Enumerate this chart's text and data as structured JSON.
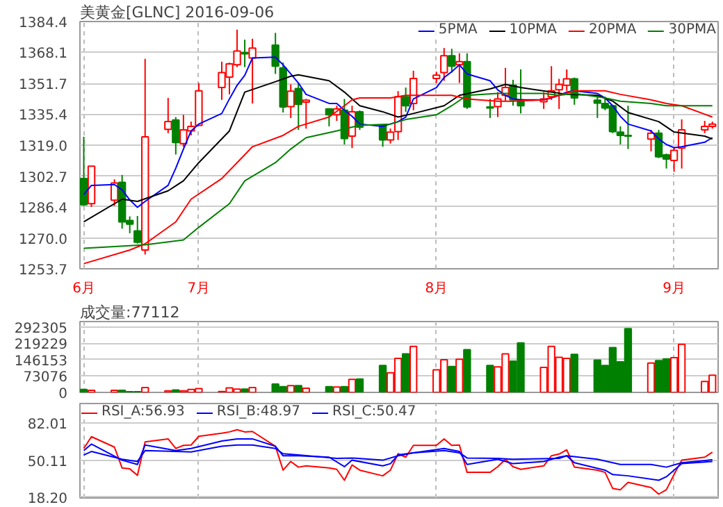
{
  "chart_data": [
    {
      "type": "candlestick",
      "title": "美黄金[GLNC] 2016-09-06",
      "x": [
        "2016-06-16",
        "2016-06-17",
        "2016-06-20",
        "2016-06-21",
        "2016-06-22",
        "2016-06-23",
        "2016-06-24",
        "2016-06-27",
        "2016-06-28",
        "2016-06-29",
        "2016-06-30",
        "2016-07-01",
        "2016-07-04",
        "2016-07-05",
        "2016-07-06",
        "2016-07-07",
        "2016-07-08",
        "2016-07-11",
        "2016-07-12",
        "2016-07-13",
        "2016-07-14",
        "2016-07-15",
        "2016-07-18",
        "2016-07-19",
        "2016-07-20",
        "2016-07-21",
        "2016-07-22",
        "2016-07-25",
        "2016-07-26",
        "2016-07-27",
        "2016-07-28",
        "2016-07-29",
        "2016-08-01",
        "2016-08-02",
        "2016-08-03",
        "2016-08-04",
        "2016-08-05",
        "2016-08-08",
        "2016-08-09",
        "2016-08-10",
        "2016-08-11",
        "2016-08-12",
        "2016-08-15",
        "2016-08-16",
        "2016-08-17",
        "2016-08-18",
        "2016-08-19",
        "2016-08-22",
        "2016-08-23",
        "2016-08-24",
        "2016-08-25",
        "2016-08-26",
        "2016-08-29",
        "2016-08-30",
        "2016-08-31",
        "2016-09-01",
        "2016-09-02",
        "2016-09-05",
        "2016-09-06"
      ],
      "ohlc": [
        [
          1301.4,
          1323.5,
          1286.9,
          1287.6
        ],
        [
          1288.1,
          1307.9,
          1286.4,
          1307.9
        ],
        [
          1290.0,
          1301.0,
          1287.0,
          1299.0
        ],
        [
          1299.4,
          1303.3,
          1274.9,
          1278.5
        ],
        [
          1279.2,
          1281.4,
          1272.5,
          1277.3
        ],
        [
          1273.7,
          1281.6,
          1267.0,
          1267.7
        ],
        [
          1263.6,
          1364.7,
          1261.2,
          1323.5
        ],
        [
          1327.4,
          1344.0,
          1325.4,
          1331.5
        ],
        [
          1332.4,
          1333.9,
          1314.1,
          1320.4
        ],
        [
          1319.9,
          1335.1,
          1318.2,
          1327.1
        ],
        [
          1326.6,
          1331.5,
          1324.2,
          1329.0
        ],
        [
          1329.5,
          1351.9,
          1329.5,
          1347.8
        ],
        [
          1349.5,
          1363.2,
          1343.0,
          1357.4
        ],
        [
          1355.0,
          1362.7,
          1345.9,
          1362.0
        ],
        [
          1361.5,
          1380.1,
          1360.3,
          1368.8
        ],
        [
          1368.0,
          1374.8,
          1360.3,
          1367.3
        ],
        [
          1365.1,
          1375.3,
          1341.1,
          1370.4
        ],
        [
          1371.9,
          1378.4,
          1356.7,
          1360.8
        ],
        [
          1359.9,
          1362.7,
          1336.3,
          1339.2
        ],
        [
          1339.4,
          1351.2,
          1333.4,
          1347.6
        ],
        [
          1349.0,
          1351.9,
          1327.1,
          1340.6
        ],
        [
          1341.8,
          1343.5,
          1327.8,
          1342.8
        ],
        [
          1338.2,
          1338.2,
          1329.0,
          1335.1
        ],
        [
          1335.1,
          1339.9,
          1331.9,
          1338.2
        ],
        [
          1337.5,
          1343.5,
          1319.4,
          1322.5
        ],
        [
          1323.8,
          1339.9,
          1317.5,
          1336.7
        ],
        [
          1336.7,
          1337.4,
          1327.1,
          1328.6
        ],
        [
          1329.5,
          1330.2,
          1318.2,
          1321.8
        ],
        [
          1321.8,
          1327.8,
          1319.9,
          1325.9
        ],
        [
          1326.2,
          1347.6,
          1321.8,
          1344.7
        ],
        [
          1344.7,
          1349.5,
          1336.7,
          1339.9
        ],
        [
          1341.1,
          1358.4,
          1337.5,
          1354.3
        ],
        [
          1354.3,
          1357.9,
          1351.9,
          1356.0
        ],
        [
          1357.4,
          1370.4,
          1353.1,
          1366.3
        ],
        [
          1366.3,
          1370.0,
          1357.4,
          1360.8
        ],
        [
          1361.5,
          1367.6,
          1351.9,
          1363.2
        ],
        [
          1363.2,
          1367.6,
          1338.2,
          1339.2
        ],
        [
          1339.2,
          1343.5,
          1333.4,
          1338.7
        ],
        [
          1339.4,
          1347.1,
          1333.9,
          1343.5
        ],
        [
          1345.4,
          1359.9,
          1342.3,
          1349.5
        ],
        [
          1350.7,
          1353.6,
          1339.9,
          1343.0
        ],
        [
          1343.0,
          1359.1,
          1335.8,
          1339.9
        ],
        [
          1342.0,
          1347.1,
          1338.2,
          1343.5
        ],
        [
          1344.7,
          1360.8,
          1343.0,
          1347.8
        ],
        [
          1348.3,
          1354.1,
          1338.2,
          1351.2
        ],
        [
          1350.7,
          1359.1,
          1347.8,
          1354.1
        ],
        [
          1354.1,
          1354.8,
          1340.4,
          1344.0
        ],
        [
          1342.8,
          1345.2,
          1333.4,
          1341.3
        ],
        [
          1341.1,
          1344.7,
          1337.5,
          1338.7
        ],
        [
          1339.9,
          1339.9,
          1325.4,
          1326.2
        ],
        [
          1325.9,
          1329.0,
          1319.4,
          1324.2
        ],
        [
          1324.2,
          1339.9,
          1317.0,
          1323.8
        ],
        [
          1322.3,
          1327.1,
          1315.8,
          1325.4
        ],
        [
          1325.4,
          1327.1,
          1312.2,
          1312.9
        ],
        [
          1313.9,
          1314.6,
          1306.7,
          1311.7
        ],
        [
          1311.0,
          1318.2,
          1305.0,
          1316.3
        ],
        [
          1317.5,
          1332.7,
          1306.7,
          1327.1
        ],
        [
          1327.1,
          1331.9,
          1325.4,
          1329.0
        ],
        [
          1329.0,
          1331.5,
          1327.8,
          1330.2
        ]
      ],
      "series": [
        {
          "name": "5PMA",
          "type": "line",
          "color": "#0000ff",
          "x": [
            "2016-06-16",
            "2016-06-17",
            "2016-06-20",
            "2016-06-21",
            "2016-06-22",
            "2016-06-23",
            "2016-06-24",
            "2016-06-27",
            "2016-06-28",
            "2016-06-29",
            "2016-06-30",
            "2016-07-01",
            "2016-07-04",
            "2016-07-05",
            "2016-07-06",
            "2016-07-07",
            "2016-07-08",
            "2016-07-11",
            "2016-07-12",
            "2016-07-13",
            "2016-07-14",
            "2016-07-15",
            "2016-07-18",
            "2016-07-19",
            "2016-07-20",
            "2016-07-21",
            "2016-07-22",
            "2016-07-25",
            "2016-07-27",
            "2016-07-28",
            "2016-07-29",
            "2016-08-01",
            "2016-08-02",
            "2016-08-03",
            "2016-08-04",
            "2016-08-05",
            "2016-08-08",
            "2016-08-09",
            "2016-08-10",
            "2016-08-11",
            "2016-08-12",
            "2016-08-15",
            "2016-08-16",
            "2016-08-17",
            "2016-08-18",
            "2016-08-19",
            "2016-08-22",
            "2016-08-23",
            "2016-08-24",
            "2016-08-25",
            "2016-08-26",
            "2016-08-29",
            "2016-08-30",
            "2016-08-31",
            "2016-09-01",
            "2016-09-02",
            "2016-09-05",
            "2016-09-06"
          ],
          "values": [
            1292.9,
            1297.8,
            1298.2,
            1295.4,
            1290.1,
            1286.2,
            1289.3,
            1297.8,
            1306.9,
            1317.0,
            1326.6,
            1330.2,
            1335.8,
            1343.5,
            1350.7,
            1356.0,
            1365.1,
            1365.6,
            1361.5,
            1356.7,
            1351.9,
            1345.9,
            1341.1,
            1341.1,
            1337.5,
            1334.3,
            1330.2,
            1329.0,
            1331.5,
            1333.9,
            1343.5,
            1349.5,
            1354.8,
            1357.9,
            1361.5,
            1356.7,
            1353.1,
            1348.3,
            1345.4,
            1343.5,
            1343.0,
            1343.0,
            1344.0,
            1345.4,
            1347.1,
            1347.8,
            1346.4,
            1344.0,
            1339.9,
            1334.3,
            1330.2,
            1326.6,
            1322.3,
            1319.4,
            1317.7,
            1318.2,
            1320.6,
            1323.0
          ]
        },
        {
          "name": "10PMA",
          "type": "line",
          "color": "#000000",
          "x": [
            "2016-06-16",
            "2016-06-21",
            "2016-06-23",
            "2016-06-27",
            "2016-06-29",
            "2016-07-01",
            "2016-07-05",
            "2016-07-07",
            "2016-07-11",
            "2016-07-13",
            "2016-07-14",
            "2016-07-18",
            "2016-07-20",
            "2016-07-22",
            "2016-07-25",
            "2016-07-27",
            "2016-07-29",
            "2016-08-02",
            "2016-08-04",
            "2016-08-08",
            "2016-08-10",
            "2016-08-12",
            "2016-08-16",
            "2016-08-18",
            "2016-08-22",
            "2016-08-24",
            "2016-08-26",
            "2016-08-30",
            "2016-09-01",
            "2016-09-05",
            "2016-09-06"
          ],
          "values": [
            1278.5,
            1290.5,
            1289.3,
            1294.9,
            1300.2,
            1309.8,
            1326.6,
            1347.1,
            1352.6,
            1355.5,
            1356.2,
            1353.1,
            1347.1,
            1339.9,
            1336.7,
            1333.9,
            1335.8,
            1339.9,
            1345.4,
            1348.8,
            1351.2,
            1349.5,
            1347.1,
            1345.9,
            1345.4,
            1342.3,
            1336.3,
            1331.5,
            1326.0,
            1323.8,
            1322.3
          ]
        },
        {
          "name": "20PMA",
          "type": "line",
          "color": "#ff0000",
          "x": [
            "2016-06-16",
            "2016-06-22",
            "2016-06-24",
            "2016-06-28",
            "2016-06-30",
            "2016-07-04",
            "2016-07-06",
            "2016-07-08",
            "2016-07-12",
            "2016-07-14",
            "2016-07-18",
            "2016-07-20",
            "2016-07-21",
            "2016-07-22",
            "2016-07-26",
            "2016-07-28",
            "2016-08-01",
            "2016-08-03",
            "2016-08-05",
            "2016-08-09",
            "2016-08-11",
            "2016-08-15",
            "2016-08-17",
            "2016-08-19",
            "2016-08-23",
            "2016-08-25",
            "2016-08-29",
            "2016-08-31",
            "2016-09-02",
            "2016-09-06"
          ],
          "values": [
            1256.4,
            1263.6,
            1266.9,
            1278.5,
            1290.5,
            1301.4,
            1309.8,
            1318.2,
            1324.2,
            1329.0,
            1333.9,
            1339.9,
            1343.0,
            1344.0,
            1344.0,
            1345.4,
            1345.4,
            1345.4,
            1343.5,
            1342.3,
            1342.3,
            1343.0,
            1345.4,
            1347.8,
            1347.8,
            1345.9,
            1343.0,
            1341.1,
            1339.9,
            1333.9
          ]
        },
        {
          "name": "30PMA",
          "type": "line",
          "color": "#008000",
          "x": [
            "2016-06-16",
            "2016-06-24",
            "2016-06-29",
            "2016-07-01",
            "2016-07-05",
            "2016-07-07",
            "2016-07-11",
            "2016-07-13",
            "2016-07-15",
            "2016-07-19",
            "2016-07-21",
            "2016-07-22",
            "2016-07-26",
            "2016-07-28",
            "2016-08-01",
            "2016-08-03",
            "2016-08-05",
            "2016-08-09",
            "2016-08-11",
            "2016-08-15",
            "2016-08-17",
            "2016-08-19",
            "2016-08-23",
            "2016-08-25",
            "2016-08-29",
            "2016-08-31",
            "2016-09-02",
            "2016-09-06"
          ],
          "values": [
            1264.5,
            1266.4,
            1268.9,
            1275.6,
            1288.1,
            1300.2,
            1309.8,
            1317.0,
            1323.0,
            1326.6,
            1328.6,
            1329.5,
            1330.2,
            1332.6,
            1335.1,
            1339.9,
            1345.4,
            1346.4,
            1346.4,
            1346.4,
            1345.4,
            1346.4,
            1344.0,
            1342.3,
            1341.1,
            1339.9,
            1339.9,
            1339.9
          ]
        }
      ],
      "xlim": [
        "2016-06-15T12:00",
        "2016-09-06T18:00"
      ],
      "xticks": [
        {
          "value": "2016-06-16",
          "label": "6月"
        },
        {
          "value": "2016-07-01",
          "label": "7月"
        },
        {
          "value": "2016-08-01",
          "label": "8月"
        },
        {
          "value": "2016-09-01",
          "label": "9月"
        }
      ],
      "ylim": [
        1253.7,
        1384.4
      ],
      "yticks": [
        1253.7,
        {
          "value": 1270,
          "label": "1270.0"
        },
        1286.4,
        1302.7,
        {
          "value": 1319,
          "label": "1319.0"
        },
        1335.4,
        1351.7,
        1368.1,
        1384.4
      ],
      "grid": true,
      "legend": "top right"
    },
    {
      "type": "bar",
      "title": "成交量:77112",
      "x": [
        "2016-06-16",
        "2016-06-17",
        "2016-06-20",
        "2016-06-21",
        "2016-06-22",
        "2016-06-23",
        "2016-06-24",
        "2016-06-27",
        "2016-06-28",
        "2016-06-29",
        "2016-06-30",
        "2016-07-01",
        "2016-07-04",
        "2016-07-05",
        "2016-07-06",
        "2016-07-07",
        "2016-07-08",
        "2016-07-11",
        "2016-07-12",
        "2016-07-13",
        "2016-07-14",
        "2016-07-15",
        "2016-07-18",
        "2016-07-19",
        "2016-07-20",
        "2016-07-21",
        "2016-07-22",
        "2016-07-25",
        "2016-07-26",
        "2016-07-27",
        "2016-07-28",
        "2016-07-29",
        "2016-08-01",
        "2016-08-02",
        "2016-08-03",
        "2016-08-04",
        "2016-08-05",
        "2016-08-08",
        "2016-08-09",
        "2016-08-10",
        "2016-08-11",
        "2016-08-12",
        "2016-08-15",
        "2016-08-16",
        "2016-08-17",
        "2016-08-18",
        "2016-08-19",
        "2016-08-22",
        "2016-08-23",
        "2016-08-24",
        "2016-08-25",
        "2016-08-26",
        "2016-08-29",
        "2016-08-30",
        "2016-08-31",
        "2016-09-01",
        "2016-09-02",
        "2016-09-05",
        "2016-09-06"
      ],
      "values": [
        13000,
        9000,
        9000,
        9000,
        3000,
        3000,
        22000,
        7000,
        11000,
        7000,
        13000,
        17000,
        4000,
        20000,
        15000,
        15000,
        22000,
        37000,
        26000,
        30000,
        30000,
        19000,
        26000,
        24000,
        26000,
        58000,
        60000,
        120000,
        88000,
        152000,
        172000,
        206000,
        101000,
        146000,
        116000,
        148000,
        191000,
        120000,
        114000,
        172000,
        140000,
        221000,
        112000,
        206000,
        157000,
        152000,
        170000,
        144000,
        120000,
        200000,
        137000,
        285000,
        131000,
        142000,
        150000,
        155000,
        215000,
        49000,
        77112
      ],
      "colors": [
        "#008000",
        "#ff0000",
        "#ff0000",
        "#008000",
        "#008000",
        "#008000",
        "#ff0000",
        "#ff0000",
        "#008000",
        "#ff0000",
        "#ff0000",
        "#ff0000",
        "#ff0000",
        "#ff0000",
        "#ff0000",
        "#008000",
        "#ff0000",
        "#008000",
        "#008000",
        "#ff0000",
        "#008000",
        "#ff0000",
        "#008000",
        "#ff0000",
        "#008000",
        "#ff0000",
        "#008000",
        "#008000",
        "#ff0000",
        "#ff0000",
        "#008000",
        "#ff0000",
        "#ff0000",
        "#ff0000",
        "#008000",
        "#ff0000",
        "#008000",
        "#008000",
        "#ff0000",
        "#ff0000",
        "#008000",
        "#008000",
        "#ff0000",
        "#ff0000",
        "#ff0000",
        "#ff0000",
        "#008000",
        "#008000",
        "#008000",
        "#008000",
        "#008000",
        "#008000",
        "#ff0000",
        "#008000",
        "#008000",
        "#ff0000",
        "#ff0000",
        "#ff0000",
        "#ff0000"
      ],
      "xlim": [
        "2016-06-15T12:00",
        "2016-09-06T18:00"
      ],
      "xticks": [
        {
          "value": "2016-06-16",
          "label": null
        },
        {
          "value": "2016-07-01",
          "label": null
        },
        {
          "value": "2016-08-01",
          "label": null
        },
        {
          "value": "2016-09-01",
          "label": null
        }
      ],
      "ylim": [
        0,
        316700
      ],
      "yticks": [
        0,
        73076,
        146153,
        219229,
        292305
      ],
      "grid": true,
      "tick_labels": "y"
    },
    {
      "type": "line",
      "series": [
        {
          "name": "RSI_A:56.93",
          "color": "#ff0000",
          "x": [
            "2016-06-16",
            "2016-06-17",
            "2016-06-20",
            "2016-06-21",
            "2016-06-22",
            "2016-06-23",
            "2016-06-24",
            "2016-06-27",
            "2016-06-28",
            "2016-06-29",
            "2016-06-30",
            "2016-07-01",
            "2016-07-04",
            "2016-07-05",
            "2016-07-06",
            "2016-07-07",
            "2016-07-08",
            "2016-07-11",
            "2016-07-12",
            "2016-07-13",
            "2016-07-14",
            "2016-07-15",
            "2016-07-18",
            "2016-07-19",
            "2016-07-20",
            "2016-07-21",
            "2016-07-22",
            "2016-07-25",
            "2016-07-26",
            "2016-07-27",
            "2016-07-28",
            "2016-07-29",
            "2016-08-01",
            "2016-08-02",
            "2016-08-03",
            "2016-08-04",
            "2016-08-05",
            "2016-08-08",
            "2016-08-09",
            "2016-08-10",
            "2016-08-11",
            "2016-08-12",
            "2016-08-15",
            "2016-08-16",
            "2016-08-17",
            "2016-08-18",
            "2016-08-19",
            "2016-08-22",
            "2016-08-23",
            "2016-08-24",
            "2016-08-25",
            "2016-08-26",
            "2016-08-29",
            "2016-08-30",
            "2016-08-31",
            "2016-09-01",
            "2016-09-02",
            "2016-09-05",
            "2016-09-06"
          ],
          "values": [
            60.2,
            70.4,
            61.4,
            43.4,
            42.6,
            37.0,
            65.9,
            68.5,
            60.2,
            62.9,
            63.2,
            70.7,
            73.4,
            74.5,
            76.4,
            74.5,
            74.9,
            62.1,
            41.5,
            49.0,
            44.1,
            45.2,
            43.4,
            42.2,
            32.8,
            46.0,
            41.5,
            36.6,
            41.5,
            55.7,
            52.7,
            62.9,
            62.9,
            68.5,
            62.9,
            63.2,
            39.6,
            39.6,
            44.5,
            50.9,
            44.5,
            42.2,
            45.2,
            53.9,
            55.4,
            59.1,
            44.1,
            41.5,
            39.6,
            25.7,
            24.6,
            31.0,
            26.5,
            20.8,
            24.6,
            37.7,
            50.1,
            52.7,
            56.93
          ]
        },
        {
          "name": "RSI_B:48.97",
          "color": "#0000ff",
          "x": [
            "2016-06-16",
            "2016-06-17",
            "2016-06-21",
            "2016-06-23",
            "2016-06-24",
            "2016-06-28",
            "2016-06-30",
            "2016-07-04",
            "2016-07-06",
            "2016-07-08",
            "2016-07-11",
            "2016-07-12",
            "2016-07-14",
            "2016-07-18",
            "2016-07-20",
            "2016-07-21",
            "2016-07-25",
            "2016-07-26",
            "2016-07-27",
            "2016-07-29",
            "2016-08-02",
            "2016-08-04",
            "2016-08-05",
            "2016-08-09",
            "2016-08-11",
            "2016-08-15",
            "2016-08-17",
            "2016-08-18",
            "2016-08-19",
            "2016-08-23",
            "2016-08-24",
            "2016-08-26",
            "2016-08-30",
            "2016-08-31",
            "2016-09-02",
            "2016-09-06"
          ],
          "values": [
            58.4,
            64.0,
            50.1,
            46.4,
            63.2,
            58.4,
            60.2,
            66.6,
            68.5,
            68.5,
            62.1,
            53.9,
            53.9,
            52.7,
            44.5,
            50.1,
            45.2,
            47.1,
            54.6,
            56.5,
            60.2,
            57.6,
            46.4,
            50.9,
            47.1,
            49.0,
            52.7,
            53.9,
            47.9,
            41.5,
            37.7,
            36.6,
            32.8,
            35.8,
            47.1,
            48.97
          ]
        },
        {
          "name": "RSI_C:50.47",
          "color": "#0000ff",
          "x": [
            "2016-06-16",
            "2016-06-17",
            "2016-06-21",
            "2016-06-23",
            "2016-06-24",
            "2016-06-28",
            "2016-06-30",
            "2016-07-04",
            "2016-07-06",
            "2016-07-08",
            "2016-07-11",
            "2016-07-12",
            "2016-07-14",
            "2016-07-19",
            "2016-07-21",
            "2016-07-25",
            "2016-07-27",
            "2016-07-29",
            "2016-08-02",
            "2016-08-04",
            "2016-08-05",
            "2016-08-09",
            "2016-08-11",
            "2016-08-17",
            "2016-08-18",
            "2016-08-22",
            "2016-08-25",
            "2016-08-29",
            "2016-08-31",
            "2016-09-02",
            "2016-09-06"
          ],
          "values": [
            54.6,
            57.6,
            50.9,
            49.0,
            58.4,
            57.6,
            57.2,
            62.1,
            63.2,
            63.2,
            60.2,
            55.7,
            54.6,
            51.6,
            52.0,
            50.1,
            53.9,
            56.5,
            58.4,
            56.5,
            52.0,
            51.6,
            50.9,
            51.6,
            53.9,
            50.9,
            46.4,
            46.4,
            44.1,
            47.9,
            50.47
          ]
        }
      ],
      "xlim": [
        "2016-06-15T12:00",
        "2016-09-06T18:00"
      ],
      "xticks": [
        {
          "value": "2016-06-16",
          "label": null
        },
        {
          "value": "2016-07-01",
          "label": null
        },
        {
          "value": "2016-08-01",
          "label": null
        },
        {
          "value": "2016-09-01",
          "label": null
        }
      ],
      "ylim": [
        17.5,
        99
      ],
      "yticks": [
        {
          "value": 18.2,
          "label": "18.20"
        },
        50.11,
        82.01
      ],
      "grid": true,
      "tick_labels": "y",
      "legend": "top left"
    }
  ]
}
